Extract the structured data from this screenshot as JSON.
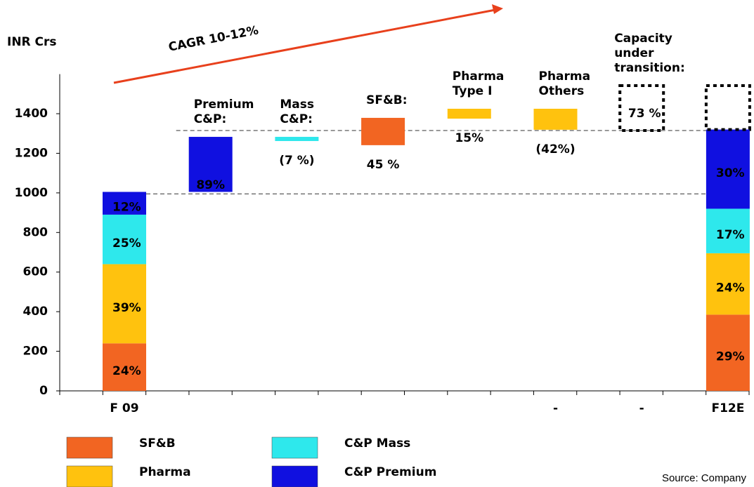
{
  "chart_data": {
    "type": "waterfall",
    "y_label": "INR Crs",
    "annotation": "CAGR 10-12%",
    "source": "Source: Company",
    "ylim": [
      0,
      1600
    ],
    "yticks": [
      0,
      200,
      400,
      600,
      800,
      1000,
      1200,
      1400
    ],
    "categories": [
      "F 09",
      null,
      null,
      null,
      null,
      "-",
      "-",
      "F12E"
    ],
    "series": [
      {
        "name": "SF&B",
        "color": "#f26522",
        "values": [
          240,
          null,
          null,
          null,
          null,
          null,
          null,
          385
        ],
        "value_labels": [
          "24%",
          null,
          null,
          null,
          null,
          null,
          null,
          "29%"
        ],
        "label_color": "#ffffff"
      },
      {
        "name": "Pharma",
        "color": "#ffc20e",
        "values": [
          400,
          null,
          null,
          null,
          null,
          null,
          null,
          310
        ],
        "value_labels": [
          "39%",
          null,
          null,
          null,
          null,
          null,
          null,
          "24%"
        ],
        "label_color": "#000000"
      },
      {
        "name": "C&P Mass",
        "color": "#2ee8ec",
        "values": [
          250,
          null,
          null,
          null,
          null,
          null,
          null,
          225
        ],
        "value_labels": [
          "25%",
          null,
          null,
          null,
          null,
          null,
          null,
          "17%"
        ],
        "label_color": "#000000"
      },
      {
        "name": "C&P Premium",
        "color": "#1010e0",
        "values": [
          115,
          null,
          null,
          null,
          null,
          null,
          null,
          400
        ],
        "value_labels": [
          "12%",
          null,
          null,
          null,
          null,
          null,
          null,
          "30%"
        ],
        "label_color": "#ffffff"
      }
    ],
    "steps": [
      {
        "label": [
          "Premium",
          "C&P:"
        ],
        "low": 1005,
        "high": 1283,
        "color": "#1010e0",
        "value_label": "89%",
        "value_label_color": "#ffffff"
      },
      {
        "label": [
          "Mass",
          "C&P:"
        ],
        "low": 1262,
        "high": 1283,
        "color": "#2ee8ec",
        "value_label": "(7 %)",
        "value_label_color": "#e8231c"
      },
      {
        "label": [
          "SF&B:"
        ],
        "low": 1241,
        "high": 1379,
        "color": "#f26522",
        "value_label": "45 %",
        "value_label_color": "#000000"
      },
      {
        "label": [
          "Pharma",
          "Type I"
        ],
        "low": 1375,
        "high": 1425,
        "color": "#ffc20e",
        "value_label": "15%",
        "value_label_color": "#000000"
      },
      {
        "label": [
          "Pharma",
          "Others"
        ],
        "low": 1319,
        "high": 1425,
        "color": "#ffc20e",
        "value_label": "(42%)",
        "value_label_color": "#e8231c"
      },
      {
        "label": [
          "Capacity",
          "under",
          "transition:"
        ],
        "low": 1315,
        "high": 1542,
        "style": "dotted",
        "value_label": "73 %",
        "value_label_color": "#000000"
      }
    ],
    "headroom": {
      "low": 1320,
      "high": 1542
    },
    "reference_lines": [
      995,
      1315
    ]
  }
}
